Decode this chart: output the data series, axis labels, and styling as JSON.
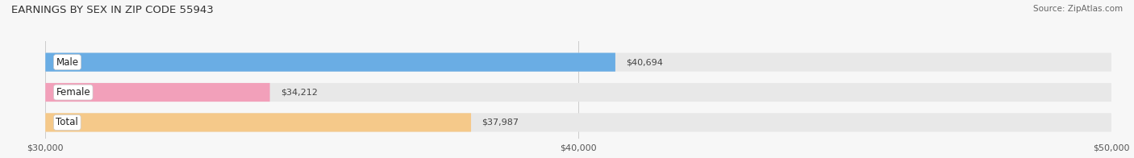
{
  "title": "EARNINGS BY SEX IN ZIP CODE 55943",
  "source": "Source: ZipAtlas.com",
  "categories": [
    "Male",
    "Female",
    "Total"
  ],
  "values": [
    40694,
    34212,
    37987
  ],
  "bar_colors": [
    "#6aade4",
    "#f2a0ba",
    "#f5c98a"
  ],
  "track_color": "#e8e8e8",
  "xmin": 30000,
  "xmax": 50000,
  "xticks": [
    30000,
    40000,
    50000
  ],
  "xtick_labels": [
    "$30,000",
    "$40,000",
    "$50,000"
  ],
  "value_labels": [
    "$40,694",
    "$34,212",
    "$37,987"
  ],
  "bar_height": 0.62,
  "figsize": [
    14.06,
    1.96
  ],
  "dpi": 100,
  "title_fontsize": 9.5,
  "label_fontsize": 8.5,
  "tick_fontsize": 8,
  "value_fontsize": 8,
  "source_fontsize": 7.5
}
